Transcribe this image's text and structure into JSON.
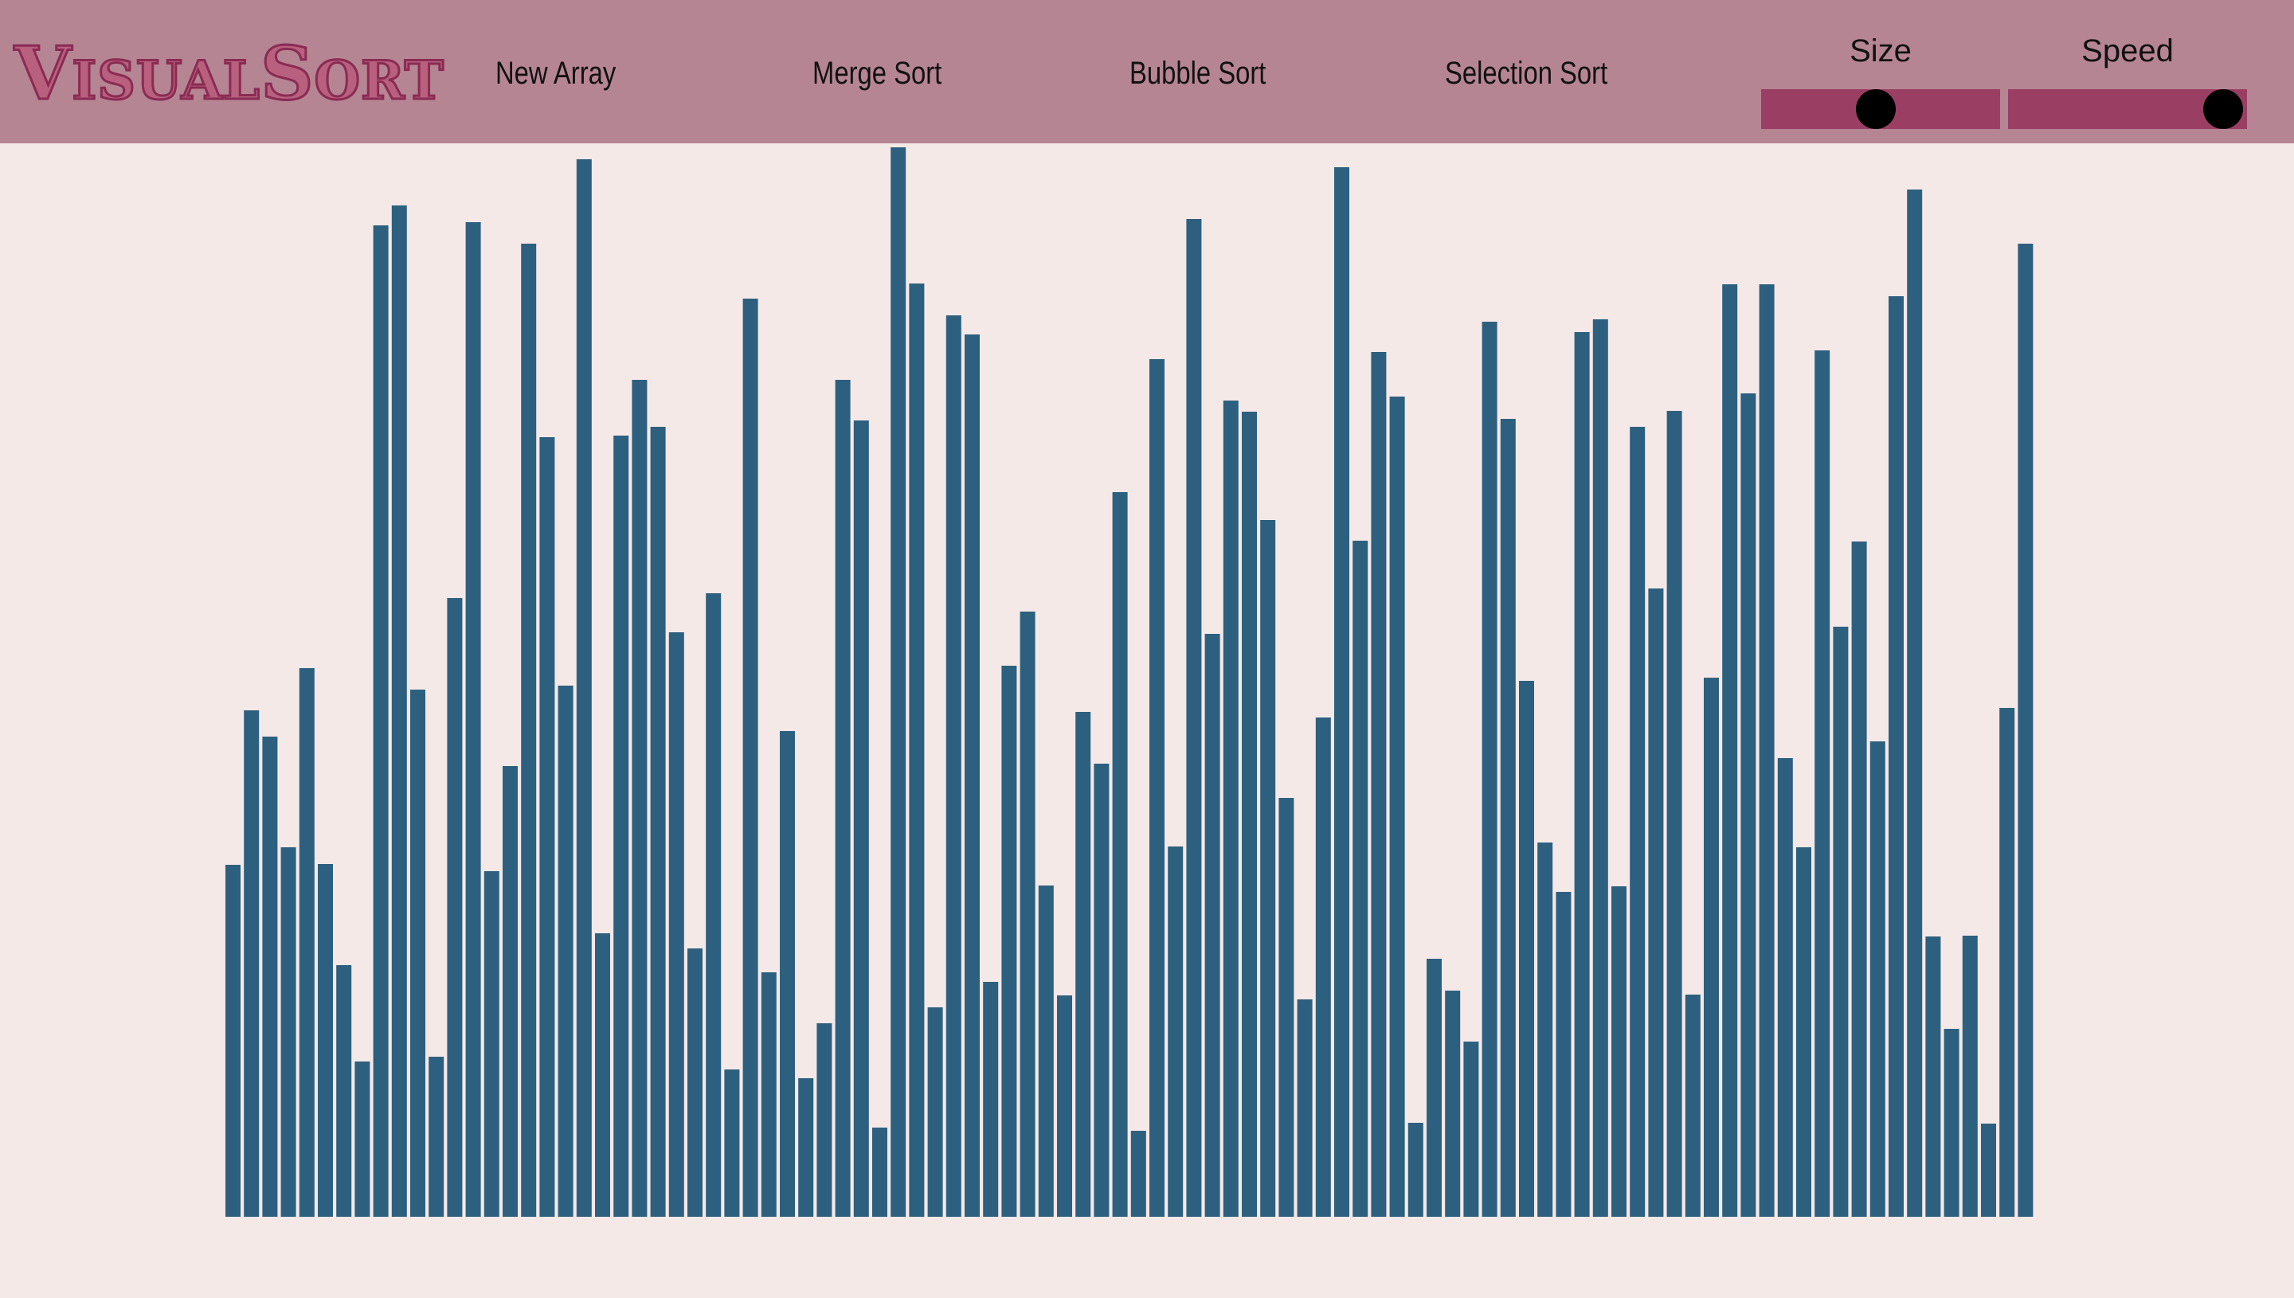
{
  "app": {
    "logo_initial_v": "V",
    "logo_rest_1": "ISUAL",
    "logo_initial_s": "S",
    "logo_rest_2": "ORT"
  },
  "nav": {
    "new_array": "New Array",
    "merge_sort": "Merge Sort",
    "bubble_sort": "Bubble Sort",
    "selection_sort": "Selection Sort"
  },
  "sliders": {
    "size": {
      "label": "Size",
      "value": 0.48
    },
    "speed": {
      "label": "Speed",
      "value": 0.9
    }
  },
  "colors": {
    "header_bg": "#b68594",
    "page_bg": "#f5e9e8",
    "bar": "#2d607f",
    "slider_track": "#9a3f63",
    "slider_knob": "#000000",
    "logo_fill": "#b8607e",
    "logo_stroke": "#8a2b52"
  },
  "chart_data": {
    "type": "bar",
    "values": [
      442,
      636,
      603,
      464,
      689,
      443,
      316,
      195,
      1245,
      1270,
      662,
      201,
      777,
      1249,
      434,
      566,
      1222,
      979,
      667,
      1328,
      356,
      981,
      1051,
      992,
      734,
      337,
      783,
      185,
      1153,
      307,
      610,
      174,
      243,
      1051,
      1000,
      112,
      1343,
      1172,
      263,
      1132,
      1108,
      295,
      692,
      760,
      416,
      278,
      634,
      569,
      910,
      108,
      1077,
      465,
      1253,
      732,
      1025,
      1011,
      875,
      526,
      273,
      627,
      1318,
      849,
      1086,
      1030,
      118,
      324,
      284,
      220,
      1124,
      1002,
      673,
      470,
      408,
      1111,
      1127,
      415,
      992,
      789,
      1012,
      279,
      677,
      1171,
      1034,
      1171,
      576,
      464,
      1088,
      741,
      848,
      597,
      1156,
      1290,
      352,
      236,
      353,
      117,
      639,
      1222
    ]
  }
}
